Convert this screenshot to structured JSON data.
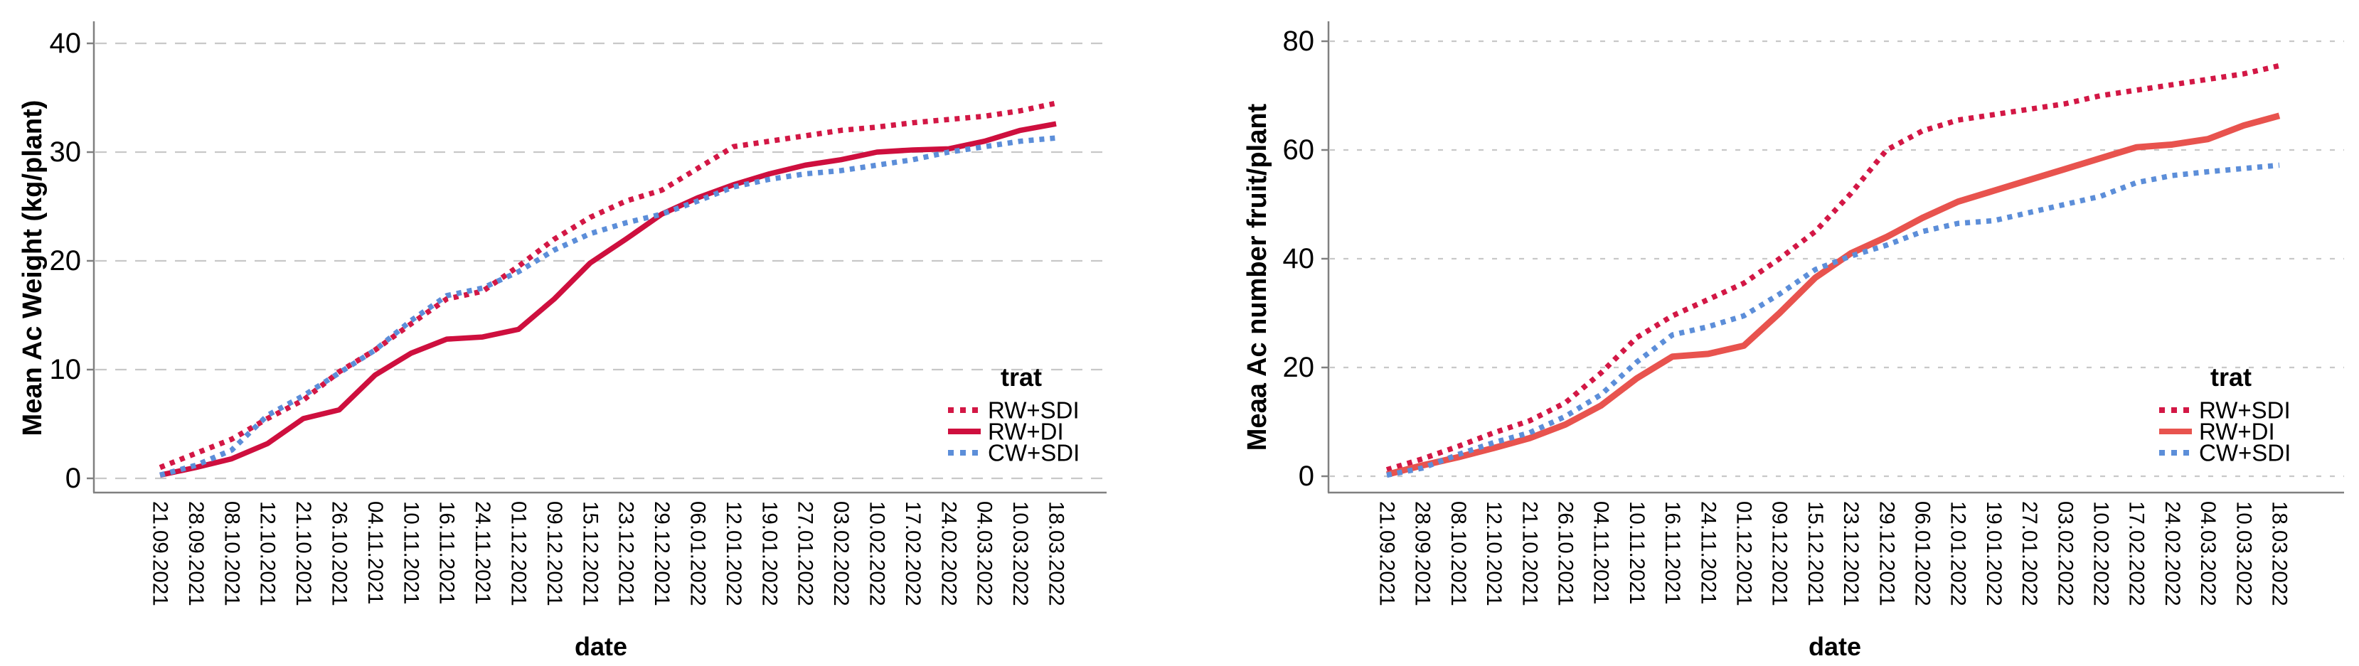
{
  "page": {
    "background": "#FFFFFF"
  },
  "chart_data": [
    {
      "type": "line",
      "title": "",
      "xlabel": "date",
      "ylabel": "Mean Ac Weight (kg/plant)",
      "legend_title": "trat",
      "legend_position": "inside-bottom-right",
      "grid": "horizontal-dashed",
      "ylim": [
        0,
        43
      ],
      "yticks": [
        0,
        10,
        20,
        30,
        40
      ],
      "categories": [
        "21.09.2021",
        "28.09.2021",
        "08.10.2021",
        "12.10.2021",
        "21.10.2021",
        "26.10.2021",
        "04.11.2021",
        "10.11.2021",
        "16.11.2021",
        "24.11.2021",
        "01.12.2021",
        "09.12.2021",
        "15.12.2021",
        "23.12.2021",
        "29.12.2021",
        "06.01.2022",
        "12.01.2022",
        "19.01.2022",
        "27.01.2022",
        "03.02.2022",
        "10.02.2022",
        "17.02.2022",
        "24.02.2022",
        "04.03.2022",
        "10.03.2022",
        "18.03.2022"
      ],
      "series": [
        {
          "name": "RW+SDI",
          "style": "dotted",
          "color": "#D31745",
          "values": [
            1.0,
            2.3,
            3.6,
            5.5,
            7.2,
            9.8,
            11.8,
            14.2,
            16.5,
            17.2,
            19.5,
            22.0,
            24.0,
            25.5,
            26.5,
            28.5,
            30.5,
            31.0,
            31.5,
            32.0,
            32.3,
            32.7,
            33.0,
            33.3,
            33.8,
            34.5
          ]
        },
        {
          "name": "RW+DI",
          "style": "solid",
          "color": "#CE0F3E",
          "values": [
            0.3,
            1.0,
            1.8,
            3.2,
            5.5,
            6.3,
            9.5,
            11.5,
            12.8,
            13.0,
            13.7,
            16.5,
            19.8,
            22.0,
            24.3,
            25.8,
            27.0,
            28.0,
            28.8,
            29.3,
            30.0,
            30.2,
            30.3,
            31.0,
            32.0,
            32.6
          ]
        },
        {
          "name": "CW+SDI",
          "style": "dotted",
          "color": "#5C8ED9",
          "values": [
            0.3,
            1.2,
            2.6,
            5.8,
            7.6,
            9.7,
            11.8,
            14.5,
            16.8,
            17.5,
            19.0,
            21.0,
            22.5,
            23.5,
            24.3,
            25.5,
            26.8,
            27.5,
            28.0,
            28.3,
            28.8,
            29.3,
            30.0,
            30.5,
            31.0,
            31.3
          ]
        }
      ]
    },
    {
      "type": "line",
      "title": "",
      "xlabel": "date",
      "ylabel": "Meaa Ac number fruit/plant",
      "legend_title": "trat",
      "legend_position": "inside-bottom-right",
      "grid": "horizontal-dashed",
      "ylim": [
        0,
        86
      ],
      "yticks": [
        0,
        20,
        40,
        60,
        80
      ],
      "categories": [
        "21.09.2021",
        "28.09.2021",
        "08.10.2021",
        "12.10.2021",
        "21.10.2021",
        "26.10.2021",
        "04.11.2021",
        "10.11.2021",
        "16.11.2021",
        "24.11.2021",
        "01.12.2021",
        "09.12.2021",
        "15.12.2021",
        "23.12.2021",
        "29.12.2021",
        "06.01.2022",
        "12.01.2022",
        "19.01.2022",
        "27.01.2022",
        "03.02.2022",
        "10.02.2022",
        "17.02.2022",
        "24.02.2022",
        "04.03.2022",
        "10.03.2022",
        "18.03.2022"
      ],
      "series": [
        {
          "name": "RW+SDI",
          "style": "dotted",
          "color": "#D31745",
          "values": [
            1.2,
            3.2,
            5.5,
            8.0,
            10.2,
            13.5,
            19.0,
            25.5,
            29.5,
            32.5,
            35.5,
            40.0,
            45.0,
            52.0,
            60.0,
            63.5,
            65.5,
            66.5,
            67.5,
            68.5,
            70.0,
            71.0,
            72.0,
            73.0,
            74.0,
            75.5
          ]
        },
        {
          "name": "RW+DI",
          "style": "solid",
          "color": "#E8534E",
          "values": [
            0.3,
            2.0,
            3.5,
            5.2,
            7.0,
            9.5,
            13.0,
            18.0,
            22.0,
            22.5,
            24.0,
            30.0,
            36.5,
            41.0,
            44.0,
            47.5,
            50.5,
            52.5,
            54.5,
            56.5,
            58.5,
            60.5,
            61.0,
            62.0,
            64.5,
            66.3
          ]
        },
        {
          "name": "CW+SDI",
          "style": "dotted",
          "color": "#5C8ED9",
          "values": [
            0.2,
            1.5,
            4.0,
            6.2,
            8.0,
            11.0,
            15.0,
            21.0,
            26.0,
            27.5,
            29.5,
            33.5,
            38.0,
            40.5,
            42.5,
            45.0,
            46.5,
            47.0,
            48.5,
            50.0,
            51.5,
            54.0,
            55.3,
            56.0,
            56.6,
            57.2
          ]
        }
      ]
    }
  ],
  "colors": {
    "axis_line": "#808080",
    "gridline": "#C8C8C8",
    "text": "#000000",
    "crimson_dotted": "#D31745",
    "crimson_solid": "#CE0F3E",
    "coral_solid": "#E8534E",
    "blue_dotted": "#5C8ED9"
  }
}
